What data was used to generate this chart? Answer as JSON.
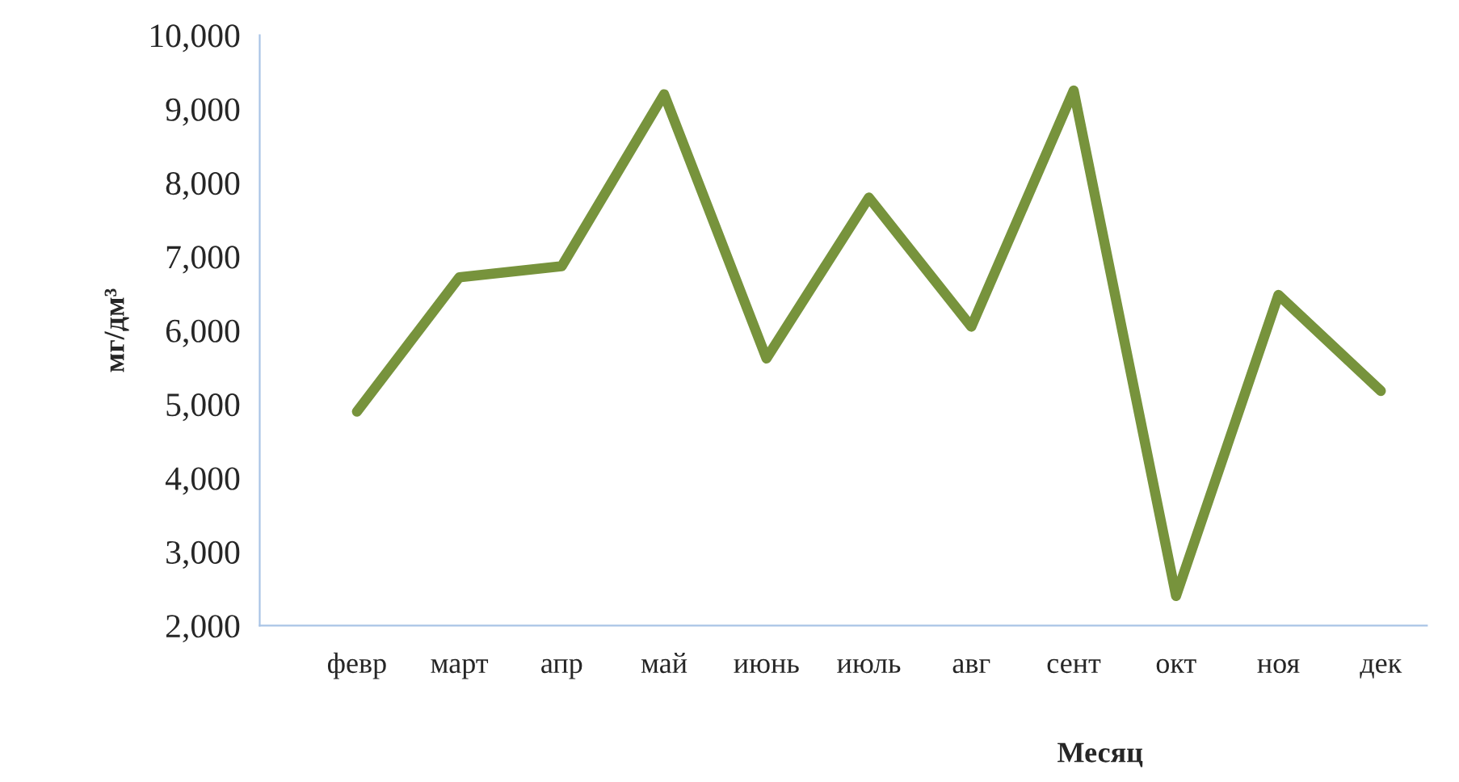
{
  "chart_data": {
    "type": "line",
    "xlabel": "Месяц",
    "ylabel": "мг/дм³",
    "categories": [
      "февр",
      "март",
      "апр",
      "май",
      "июнь",
      "июль",
      "авг",
      "сент",
      "окт",
      "ноя",
      "дек"
    ],
    "series": [
      {
        "color": "#77933c",
        "values": [
          4900,
          6720,
          6870,
          9200,
          5620,
          7800,
          6050,
          9250,
          2400,
          6480,
          5180
        ]
      }
    ],
    "ylim": [
      2000,
      10000
    ],
    "yticks": [
      {
        "value": 2000,
        "label": "2,000"
      },
      {
        "value": 3000,
        "label": "3,000"
      },
      {
        "value": 4000,
        "label": "4,000"
      },
      {
        "value": 5000,
        "label": "5,000"
      },
      {
        "value": 6000,
        "label": "6,000"
      },
      {
        "value": 7000,
        "label": "7,000"
      },
      {
        "value": 8000,
        "label": "8,000"
      },
      {
        "value": 9000,
        "label": "9,000"
      },
      {
        "value": 10000,
        "label": "10,000"
      }
    ],
    "grid": false,
    "marker": "none",
    "line_style": "solid"
  }
}
